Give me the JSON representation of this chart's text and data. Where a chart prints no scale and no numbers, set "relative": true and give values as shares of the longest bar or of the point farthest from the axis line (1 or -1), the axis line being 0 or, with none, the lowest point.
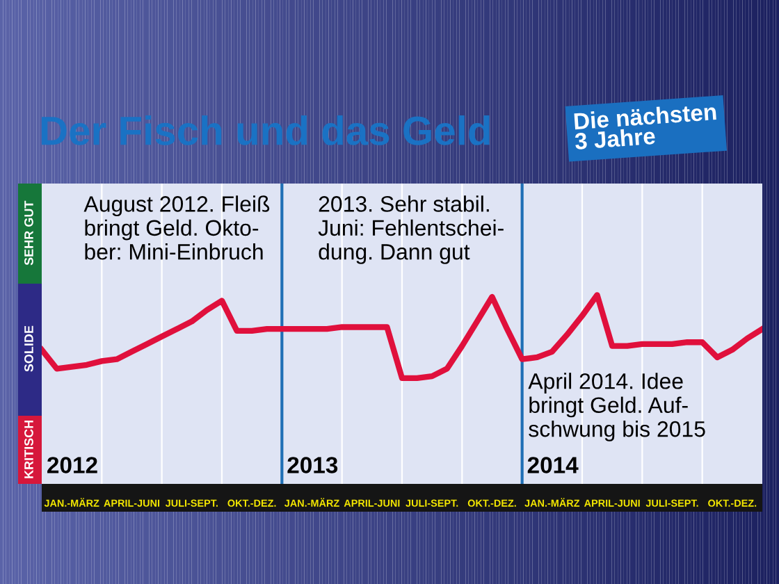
{
  "chart_data": {
    "type": "line",
    "title": "Der Fisch und das Geld",
    "subtitle": "Die nächsten 3 Jahre",
    "relative": true,
    "grid": "x",
    "line_style": "solid",
    "categories": [
      null,
      null,
      "JAN.-MÄRZ",
      null,
      null,
      null,
      "APRIL-JUNI",
      null,
      null,
      null,
      "JULI-SEPT.",
      null,
      null,
      null,
      "OKT.-DEZ.",
      null,
      null,
      null,
      "JAN.-MÄRZ",
      null,
      null,
      null,
      "APRIL-JUNI",
      null,
      null,
      null,
      "JULI-SEPT.",
      null,
      null,
      null,
      "OKT.-DEZ.",
      null,
      null,
      null,
      "JAN.-MÄRZ",
      null,
      null,
      null,
      "APRIL-JUNI",
      null,
      null,
      null,
      "JULI-SEPT.",
      null,
      null,
      null,
      "OKT.-DEZ.",
      null,
      null
    ],
    "series": [
      {
        "color": "#e0103c",
        "values": [
          0.71,
          0.61,
          0.62,
          0.63,
          0.65,
          0.66,
          0.7,
          0.74,
          0.78,
          0.82,
          0.86,
          0.92,
          0.97,
          0.81,
          0.81,
          0.82,
          0.82,
          0.82,
          0.82,
          0.82,
          0.83,
          0.83,
          0.83,
          0.83,
          0.56,
          0.56,
          0.57,
          0.61,
          0.73,
          0.86,
          0.99,
          0.82,
          0.66,
          0.67,
          0.7,
          0.79,
          0.89,
          1,
          0.73,
          0.73,
          0.74,
          0.74,
          0.74,
          0.75,
          0.75,
          0.67,
          0.71,
          0.77,
          0.82
        ]
      }
    ],
    "annotations": [
      "August 2012. Fleiß\nbringt Geld. Okto-\nber: Mini-Einbruch",
      "2013. Sehr stabil.\nJuni: Fehlentschei-\ndung. Dann gut",
      "April 2014. Idee\nbringt Geld. Auf-\nschwung bis 2015",
      "2012",
      "2013",
      "2014",
      "KRITISCH",
      "SOLIDE",
      "SEHR GUT"
    ]
  }
}
